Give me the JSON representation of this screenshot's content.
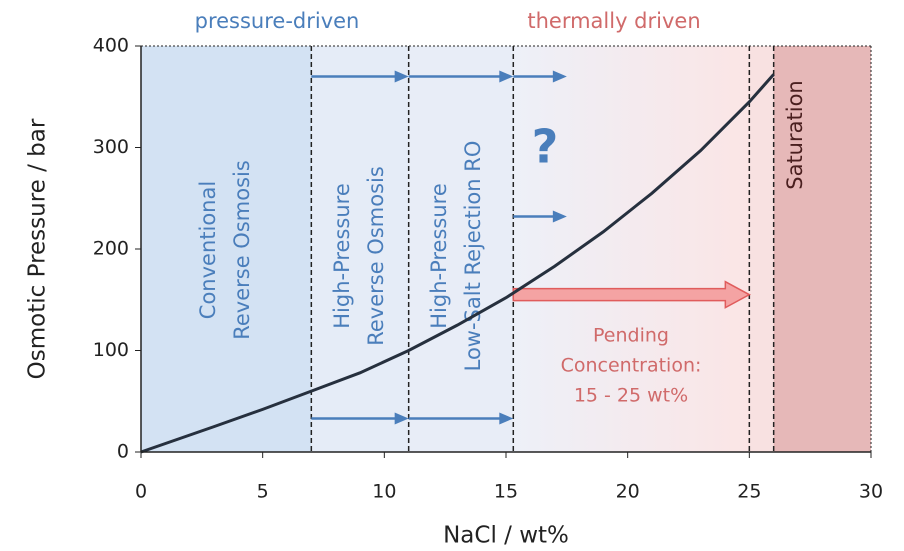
{
  "chart_data": {
    "type": "line",
    "x_label": "NaCl / wt%",
    "y_label": "Osmotic Pressure / bar",
    "xlim": [
      0,
      30
    ],
    "ylim": [
      0,
      400
    ],
    "xticks": [
      0,
      5,
      10,
      15,
      20,
      25,
      30
    ],
    "yticks": [
      0,
      100,
      200,
      300,
      400
    ],
    "series": [
      {
        "color": "#26303e",
        "x": [
          0,
          3,
          5,
          7,
          9,
          11,
          13,
          15,
          17,
          19,
          21,
          23,
          25,
          26
        ],
        "values": [
          0,
          25,
          42,
          60,
          78,
          100,
          125,
          152,
          183,
          217,
          255,
          297,
          345,
          372
        ]
      }
    ],
    "regions": [
      {
        "x0": 0,
        "x1": 7,
        "color": "#d3e2f3",
        "label": [
          "Conventional",
          "Reverse Osmosis"
        ]
      },
      {
        "x0": 7,
        "x1": 11,
        "color": "#e5ecf7",
        "label": [
          "High-Pressure",
          "Reverse Osmosis"
        ]
      },
      {
        "x0": 11,
        "x1": 15.3,
        "color": "#e8edf7",
        "label": [
          "High-Pressure",
          "Low-Salt Rejection RO"
        ]
      },
      {
        "x0": 15.3,
        "x1": 25,
        "color": "#edf0f8",
        "color_end": "#fbe5e5"
      },
      {
        "x0": 25,
        "x1": 26,
        "color": "#f8e1e1"
      },
      {
        "x0": 26,
        "x1": 30,
        "color": "#e6b8b8",
        "label": [
          "Saturation"
        ]
      }
    ],
    "dividers": [
      7,
      11,
      15.3,
      25,
      26
    ],
    "arrows": [
      {
        "x0": 7,
        "x1": 11,
        "y": 370
      },
      {
        "x0": 11,
        "x1": 15.3,
        "y": 370
      },
      {
        "x0": 15.3,
        "x1": 17.5,
        "y": 370
      },
      {
        "x0": 15.3,
        "x1": 17.5,
        "y": 232
      },
      {
        "x0": 7,
        "x1": 11,
        "y": 33
      },
      {
        "x0": 11,
        "x1": 15.3,
        "y": 33
      }
    ],
    "big_arrow": {
      "x0": 15.3,
      "x1": 25,
      "y": 155
    },
    "top_labels": [
      "pressure-driven",
      "thermally driven"
    ],
    "question": "?",
    "pending": [
      "Pending",
      "Concentration:",
      "15 - 25 wt%"
    ]
  }
}
